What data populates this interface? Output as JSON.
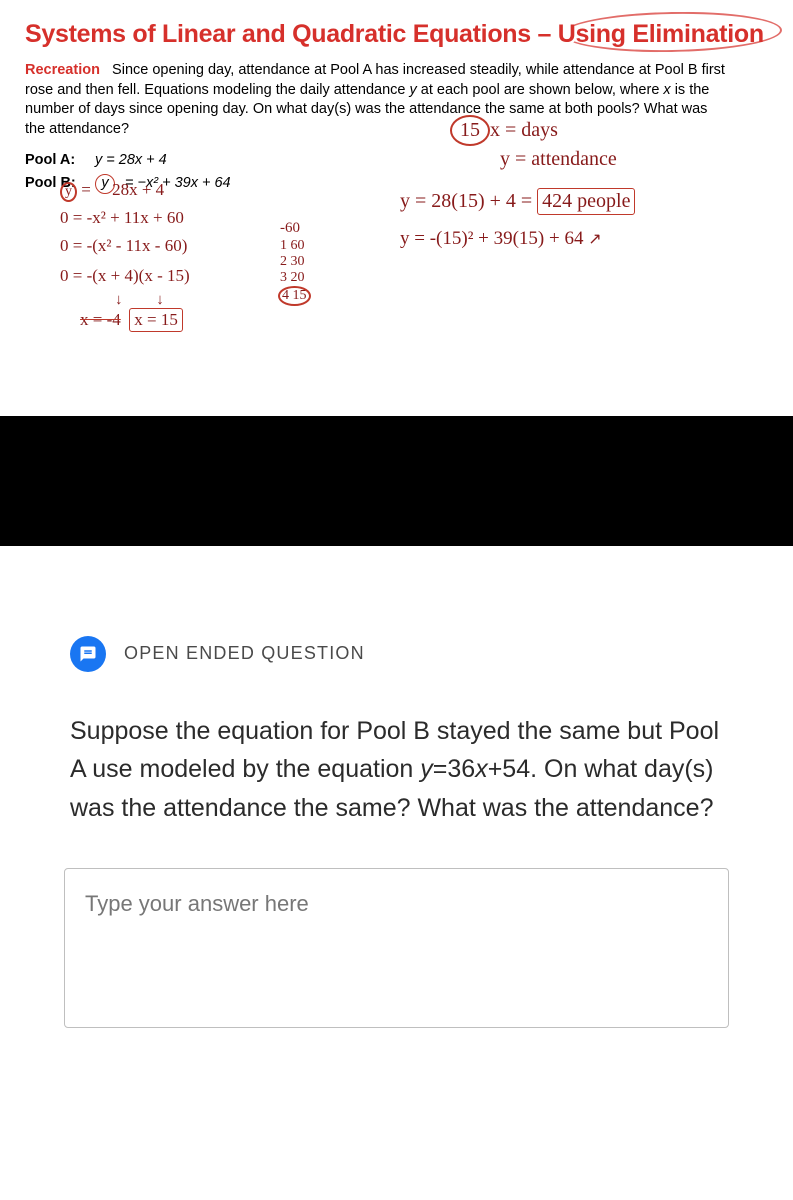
{
  "heading": "Systems of Linear and Quadratic Equations – Using Elimination",
  "problem": {
    "prefix": "Recreation",
    "text_1": "Since opening day, attendance at Pool A has increased steadily, while attendance at Pool B first rose and then fell. Equations modeling the daily attendance ",
    "text_ital_y": "y",
    "text_2": " at each pool are shown below, where ",
    "text_ital_x": "x",
    "text_3": " is the number of days since opening day. On what day(s) was the attendance the same at both pools? What was the attendance?"
  },
  "pool_a": {
    "label": "Pool A:",
    "eqn": "y = 28x + 4"
  },
  "pool_b": {
    "label": "Pool B:",
    "eqn_left": "y",
    "eqn_right": "= −x² + 39x + 64"
  },
  "handwriting": {
    "h1": "15",
    "h1b": "x = days",
    "h2": "y = attendance",
    "h3": "y = 28(15) + 4 =",
    "h3box": "424 people",
    "h4": "y = -(15)² + 39(15) + 64",
    "l1": "y =      28x + 4",
    "l2": "0 = -x² + 11x + 60",
    "l3": "0 = -(x² - 11x - 60)",
    "l4": "0 = -(x + 4)(x - 15)",
    "l5a": "x = -4",
    "l5b": "x = 15",
    "factors_header": "-60",
    "f1": "1 60",
    "f2": "2 30",
    "f3": "3 20",
    "f4": "4 15"
  },
  "open_ended": {
    "label": "OPEN ENDED QUESTION",
    "question_pre": "Suppose the equation for Pool B stayed the same but Pool A use modeled by the equation ",
    "equation": "y=36x+54",
    "question_post": ". On what day(s) was the attendance the same? What was the attendance?",
    "placeholder": "Type your answer here"
  },
  "colors": {
    "heading_red": "#d6302b",
    "handwriting": "#871a1a",
    "icon_blue": "#1976f2",
    "text_dark": "#2b2b2b",
    "border_gray": "#bfbfbf"
  }
}
